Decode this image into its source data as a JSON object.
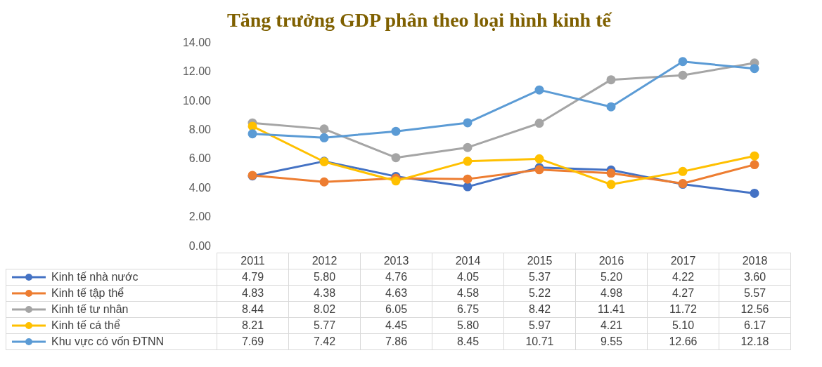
{
  "chart_data": {
    "type": "line",
    "title": "Tăng trưởng GDP phân theo loại hình kinh tế",
    "categories": [
      "2011",
      "2012",
      "2013",
      "2014",
      "2015",
      "2016",
      "2017",
      "2018"
    ],
    "series": [
      {
        "name": "Kinh tế nhà nước",
        "color": "#4472c4",
        "values": [
          4.79,
          5.8,
          4.76,
          4.05,
          5.37,
          5.2,
          4.22,
          3.6
        ],
        "value_labels": [
          "4.79",
          "5.80",
          "4.76",
          "4.05",
          "5.37",
          "5.20",
          "4.22",
          "3.60"
        ]
      },
      {
        "name": "Kinh tế tập thể",
        "color": "#ed7d31",
        "values": [
          4.83,
          4.38,
          4.63,
          4.58,
          5.22,
          4.98,
          4.27,
          5.57
        ],
        "value_labels": [
          "4.83",
          "4.38",
          "4.63",
          "4.58",
          "5.22",
          "4.98",
          "4.27",
          "5.57"
        ]
      },
      {
        "name": "Kinh tế tư nhân",
        "color": "#a5a5a5",
        "values": [
          8.44,
          8.02,
          6.05,
          6.75,
          8.42,
          11.41,
          11.72,
          12.56
        ],
        "value_labels": [
          "8.44",
          "8.02",
          "6.05",
          "6.75",
          "8.42",
          "11.41",
          "11.72",
          "12.56"
        ]
      },
      {
        "name": "Kinh tế cá thể",
        "color": "#ffc000",
        "values": [
          8.21,
          5.77,
          4.45,
          5.8,
          5.97,
          4.21,
          5.1,
          6.17
        ],
        "value_labels": [
          "8.21",
          "5.77",
          "4.45",
          "5.80",
          "5.97",
          "4.21",
          "5.10",
          "6.17"
        ]
      },
      {
        "name": "Khu vực có vốn ĐTNN",
        "color": "#5b9bd5",
        "values": [
          7.69,
          7.42,
          7.86,
          8.45,
          10.71,
          9.55,
          12.66,
          12.18
        ],
        "value_labels": [
          "7.69",
          "7.42",
          "7.86",
          "8.45",
          "10.71",
          "9.55",
          "12.66",
          "12.18"
        ]
      }
    ],
    "ylim": [
      0,
      14
    ],
    "yticks": [
      {
        "value": 0,
        "label": "0.00"
      },
      {
        "value": 2,
        "label": "2.00"
      },
      {
        "value": 4,
        "label": "4.00"
      },
      {
        "value": 6,
        "label": "6.00"
      },
      {
        "value": 8,
        "label": "8.00"
      },
      {
        "value": 10,
        "label": "10.00"
      },
      {
        "value": 12,
        "label": "12.00"
      },
      {
        "value": 14,
        "label": "14.00"
      }
    ],
    "legend": "bottom",
    "marker": "circle",
    "line_style": "solid"
  }
}
